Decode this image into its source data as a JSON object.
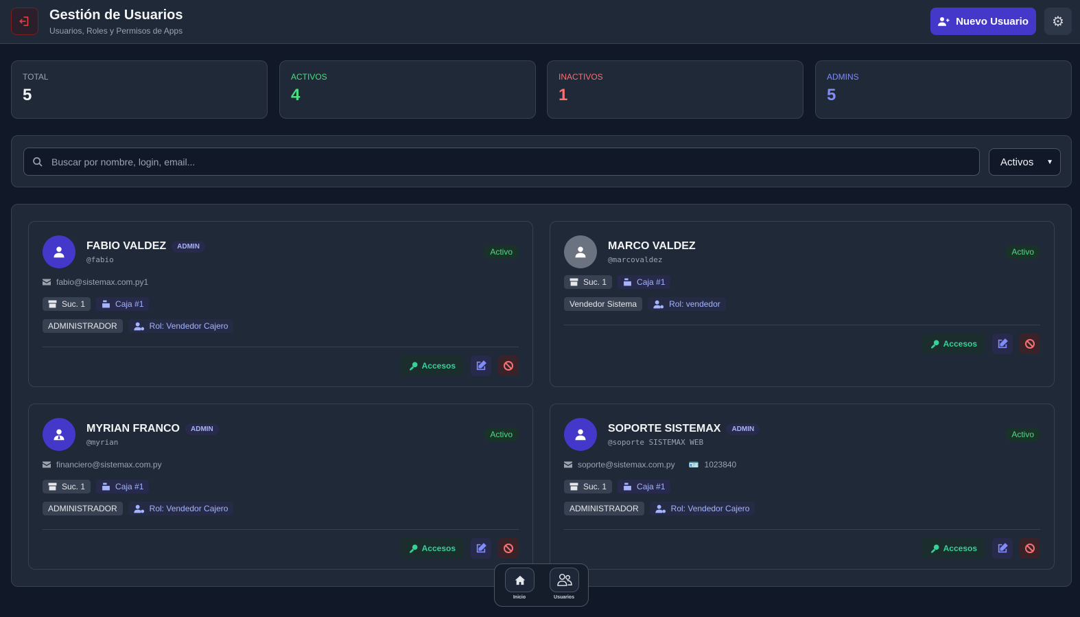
{
  "header": {
    "title": "Gestión de Usuarios",
    "subtitle": "Usuarios, Roles y Permisos de Apps",
    "new_user_label": "Nuevo Usuario"
  },
  "stats": [
    {
      "label": "TOTAL",
      "value": "5",
      "color": "#f3f4f6",
      "lcolor": "#9ca3af"
    },
    {
      "label": "ACTIVOS",
      "value": "4",
      "color": "#4ade80",
      "lcolor": "#4ade80"
    },
    {
      "label": "INACTIVOS",
      "value": "1",
      "color": "#f87171",
      "lcolor": "#f87171"
    },
    {
      "label": "ADMINS",
      "value": "5",
      "color": "#818cf8",
      "lcolor": "#818cf8"
    }
  ],
  "search": {
    "placeholder": "Buscar por nombre, login, email...",
    "filter": "Activos"
  },
  "users": [
    {
      "name": "FABIO VALDEZ",
      "admin_badge": "ADMIN",
      "login": "@fabio",
      "status": "Activo",
      "email": "fabio@sistemax.com.py1",
      "doc": null,
      "branch": "Suc. 1",
      "register": "Caja #1",
      "type": "ADMINISTRADOR",
      "role": "Rol: Vendedor Cajero",
      "avatar": "user"
    },
    {
      "name": "MARCO VALDEZ",
      "admin_badge": null,
      "login": "@marcovaldez",
      "status": "Activo",
      "email": null,
      "doc": null,
      "branch": "Suc. 1",
      "register": "Caja #1",
      "type": "Vendedor Sistema",
      "role": "Rol: vendedor",
      "avatar": "user-gray"
    },
    {
      "name": "MYRIAN FRANCO",
      "admin_badge": "ADMIN",
      "login": "@myrian",
      "status": "Activo",
      "email": "financiero@sistemax.com.py",
      "doc": null,
      "branch": "Suc. 1",
      "register": "Caja #1",
      "type": "ADMINISTRADOR",
      "role": "Rol: Vendedor Cajero",
      "avatar": "user-tie"
    },
    {
      "name": "SOPORTE SISTEMAX",
      "admin_badge": "ADMIN",
      "login": "@soporte SISTEMAX WEB",
      "status": "Activo",
      "email": "soporte@sistemax.com.py",
      "doc": "1023840",
      "branch": "Suc. 1",
      "register": "Caja #1",
      "type": "ADMINISTRADOR",
      "role": "Rol: Vendedor Cajero",
      "avatar": "user"
    }
  ],
  "actions": {
    "access_label": "Accesos"
  },
  "bottom_nav": [
    {
      "label": "Inicio",
      "icon": "home-icon"
    },
    {
      "label": "Usuarios",
      "icon": "users-icon"
    }
  ]
}
